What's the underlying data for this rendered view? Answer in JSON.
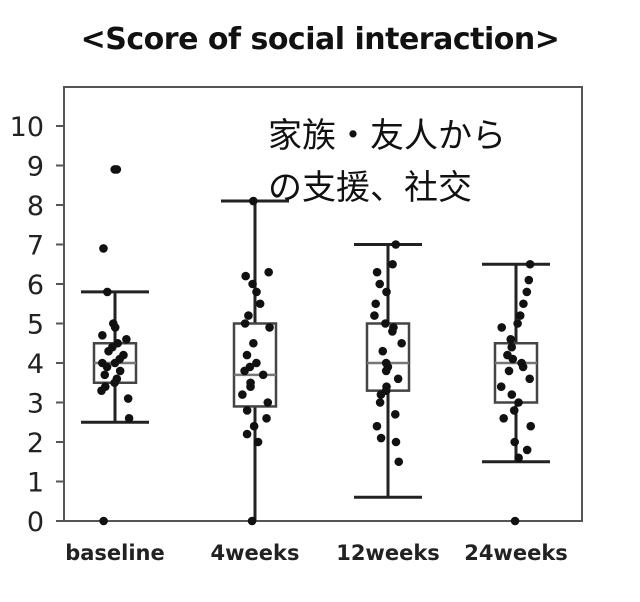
{
  "chart_data": {
    "type": "box",
    "title": "<Score of social interaction>",
    "annotation_lines": [
      "家族・友人から",
      "の支援、社交"
    ],
    "categories": [
      "baseline",
      "4weeks",
      "12weeks",
      "24weeks"
    ],
    "ylim": [
      0,
      10
    ],
    "yticks": [
      "0",
      "1",
      "2",
      "3",
      "4",
      "5",
      "6",
      "7",
      "8",
      "9",
      "10"
    ],
    "grid": false,
    "boxes": [
      {
        "whisker_low": 2.5,
        "q1": 3.5,
        "median": 4.0,
        "q3": 4.5,
        "whisker_high": 5.8
      },
      {
        "whisker_low": 0.0,
        "q1": 2.9,
        "median": 3.7,
        "q3": 5.0,
        "whisker_high": 8.1
      },
      {
        "whisker_low": 0.6,
        "q1": 3.3,
        "median": 4.0,
        "q3": 5.0,
        "whisker_high": 7.0
      },
      {
        "whisker_low": 1.5,
        "q1": 3.0,
        "median": 4.0,
        "q3": 4.5,
        "whisker_high": 6.5
      }
    ],
    "points": [
      [
        8.9,
        8.9,
        6.9,
        5.8,
        5.0,
        4.9,
        4.7,
        4.6,
        4.5,
        4.4,
        4.3,
        4.2,
        4.1,
        4.0,
        4.0,
        3.9,
        3.8,
        3.7,
        3.6,
        3.5,
        3.4,
        3.3,
        3.1,
        2.6,
        0.0
      ],
      [
        8.1,
        6.3,
        6.2,
        6.0,
        5.8,
        5.5,
        5.2,
        5.0,
        4.9,
        4.5,
        4.2,
        4.0,
        3.9,
        3.8,
        3.7,
        3.5,
        3.4,
        3.2,
        3.0,
        2.8,
        2.6,
        2.4,
        2.2,
        2.0,
        0.0
      ],
      [
        7.0,
        6.5,
        6.3,
        6.0,
        5.8,
        5.5,
        5.2,
        5.0,
        4.9,
        4.8,
        4.5,
        4.3,
        4.0,
        3.9,
        3.8,
        3.6,
        3.4,
        3.3,
        3.2,
        3.0,
        2.7,
        2.4,
        2.1,
        2.0,
        1.5
      ],
      [
        6.5,
        6.1,
        5.8,
        5.5,
        5.2,
        5.0,
        4.9,
        4.6,
        4.4,
        4.2,
        4.1,
        4.0,
        3.9,
        3.8,
        3.6,
        3.4,
        3.2,
        3.0,
        2.8,
        2.6,
        2.4,
        2.0,
        1.8,
        1.6,
        0.0
      ]
    ]
  }
}
